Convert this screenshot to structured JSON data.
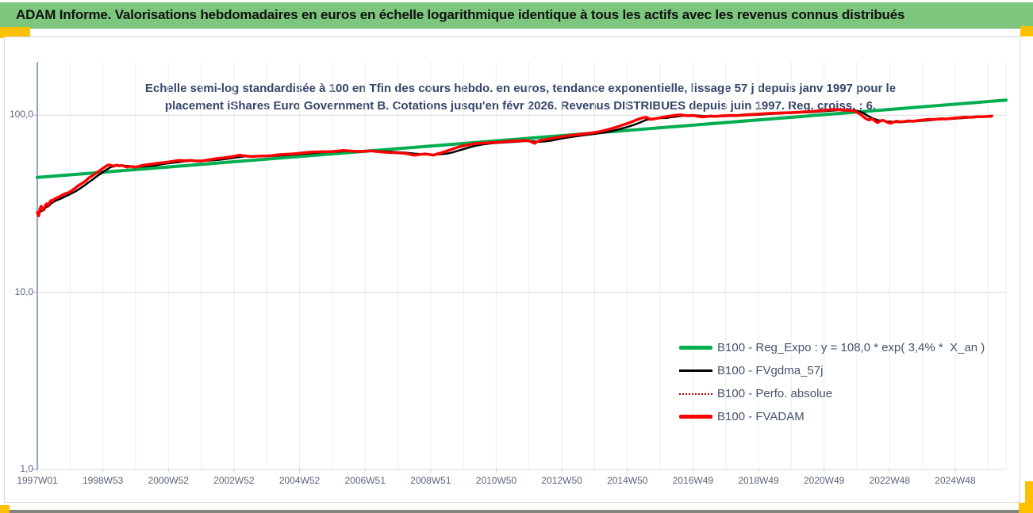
{
  "header": {
    "title": "ADAM Informe. Valorisations hebdomadaires en euros en échelle logarithmique identique à tous les actifs avec les revenus connus distribués"
  },
  "chart": {
    "subtitle_line1": "Echelle semi-log standardisée à 100 en Tfin des cours hebdo. en euros, tendance exponentielle, lissage 57 j depuis janv 1997 pour le",
    "subtitle_line2": "placement iShares Euro Government B. Cotations jusqu'en févr 2026. Revenus DISTRIBUES depuis juin 1997. Reg. croiss. : 6,"
  },
  "colors": {
    "title_bar_green": "#7CC67D",
    "accent_yellow": "#FFC000",
    "trend_green": "#00AE50",
    "series_red": "#FF0000",
    "series_black": "#000000",
    "dotted_red": "#C00000",
    "grid_light": "#EDEDED",
    "grid_decade": "#D9D9D9",
    "axis_line": "#96A5BE",
    "axis_label": "#5A6478",
    "legend_text": "#44546A",
    "subtitle_navy": "#35466B",
    "bottom_bar_gray": "#84867E"
  },
  "chart_data": {
    "type": "line",
    "title": "",
    "x_axis": {
      "labels": [
        "1997W01",
        "1998W53",
        "2000W52",
        "2002W52",
        "2004W52",
        "2006W51",
        "2008W51",
        "2010W50",
        "2012W50",
        "2014W50",
        "2016W49",
        "2018W49",
        "2020W49",
        "2022W48",
        "2024W48"
      ],
      "label_years": [
        1997,
        1999,
        2001,
        2003,
        2005,
        2007,
        2009,
        2011,
        2013,
        2015,
        2017,
        2019,
        2021,
        2023,
        2025
      ],
      "range_years": [
        1997,
        2026.55
      ],
      "grid": "yearly"
    },
    "y_axis": {
      "scale": "log",
      "tick_labels": [
        "100,0",
        "10,0",
        "1,0"
      ],
      "tick_values": [
        100,
        10,
        1
      ],
      "range": [
        1,
        200
      ],
      "grid": "decades"
    },
    "legend": [
      {
        "label": "B100 - Reg_Expo : y = 108,0 * exp( 3,4% *  X_an )",
        "color": "#00AE50",
        "style": "solid-thick"
      },
      {
        "label": "B100 - FVgdma_57j",
        "color": "#000000",
        "style": "solid"
      },
      {
        "label": "B100 - Perfo. absolue",
        "color": "#C00000",
        "style": "dotted"
      },
      {
        "label": "B100 - FVADAM",
        "color": "#FF0000",
        "style": "solid-thick"
      }
    ],
    "series": [
      {
        "name": "B100 - Reg_Expo",
        "kind": "trend",
        "formula": "y = 108,0 * exp( 3,4% * X_an )",
        "points": [
          [
            1997.0,
            44.5
          ],
          [
            2026.55,
            121.5
          ]
        ]
      },
      {
        "name": "B100 - FVgdma_57j",
        "kind": "moving-average",
        "derived_from": "B100 - FVADAM",
        "window_days": 57
      },
      {
        "name": "B100 - Perfo. absolue",
        "kind": "dotted-overlay",
        "overlaps": "B100 - FVADAM"
      },
      {
        "name": "B100 - FVADAM",
        "kind": "weekly-values",
        "points": [
          [
            1997.0,
            28.2
          ],
          [
            1997.04,
            27.0
          ],
          [
            1997.08,
            29.6
          ],
          [
            1997.12,
            30.6
          ],
          [
            1997.16,
            29.2
          ],
          [
            1997.21,
            29.8
          ],
          [
            1997.25,
            31.0
          ],
          [
            1997.29,
            31.6
          ],
          [
            1997.33,
            30.9
          ],
          [
            1997.38,
            32.2
          ],
          [
            1997.42,
            33.0
          ],
          [
            1997.46,
            32.6
          ],
          [
            1997.5,
            33.4
          ],
          [
            1997.58,
            34.0
          ],
          [
            1997.67,
            34.6
          ],
          [
            1997.75,
            35.3
          ],
          [
            1997.83,
            35.9
          ],
          [
            1997.92,
            36.3
          ],
          [
            1998.0,
            36.9
          ],
          [
            1998.08,
            37.8
          ],
          [
            1998.17,
            38.9
          ],
          [
            1998.25,
            40.0
          ],
          [
            1998.33,
            40.8
          ],
          [
            1998.42,
            41.8
          ],
          [
            1998.5,
            43.0
          ],
          [
            1998.58,
            44.3
          ],
          [
            1998.67,
            45.4
          ],
          [
            1998.75,
            46.4
          ],
          [
            1998.83,
            47.6
          ],
          [
            1998.92,
            48.8
          ],
          [
            1999.0,
            50.1
          ],
          [
            1999.08,
            51.3
          ],
          [
            1999.17,
            52.4
          ],
          [
            1999.25,
            52.0
          ],
          [
            1999.33,
            51.5
          ],
          [
            1999.42,
            52.2
          ],
          [
            1999.5,
            51.7
          ],
          [
            1999.58,
            52.1
          ],
          [
            1999.67,
            51.3
          ],
          [
            1999.75,
            50.9
          ],
          [
            1999.83,
            51.4
          ],
          [
            1999.92,
            51.1
          ],
          [
            2000.0,
            50.8
          ],
          [
            2000.17,
            51.9
          ],
          [
            2000.33,
            52.4
          ],
          [
            2000.5,
            53.0
          ],
          [
            2000.67,
            53.5
          ],
          [
            2000.83,
            53.9
          ],
          [
            2001.0,
            54.3
          ],
          [
            2001.17,
            55.0
          ],
          [
            2001.33,
            55.6
          ],
          [
            2001.5,
            55.3
          ],
          [
            2001.67,
            55.6
          ],
          [
            2001.83,
            55.1
          ],
          [
            2002.0,
            55.0
          ],
          [
            2002.17,
            55.7
          ],
          [
            2002.33,
            56.3
          ],
          [
            2002.5,
            56.9
          ],
          [
            2002.67,
            57.4
          ],
          [
            2002.83,
            58.0
          ],
          [
            2003.0,
            58.6
          ],
          [
            2003.17,
            59.4
          ],
          [
            2003.33,
            58.9
          ],
          [
            2003.5,
            58.4
          ],
          [
            2003.67,
            58.6
          ],
          [
            2003.83,
            58.8
          ],
          [
            2004.0,
            58.9
          ],
          [
            2004.17,
            59.2
          ],
          [
            2004.33,
            59.7
          ],
          [
            2004.5,
            60.0
          ],
          [
            2004.67,
            60.2
          ],
          [
            2004.83,
            60.5
          ],
          [
            2005.0,
            60.9
          ],
          [
            2005.17,
            61.4
          ],
          [
            2005.33,
            61.8
          ],
          [
            2005.5,
            62.0
          ],
          [
            2005.67,
            62.1
          ],
          [
            2005.83,
            62.1
          ],
          [
            2006.0,
            62.3
          ],
          [
            2006.17,
            62.7
          ],
          [
            2006.33,
            63.2
          ],
          [
            2006.5,
            62.8
          ],
          [
            2006.67,
            62.5
          ],
          [
            2006.83,
            62.3
          ],
          [
            2007.0,
            62.6
          ],
          [
            2007.17,
            62.9
          ],
          [
            2007.33,
            62.4
          ],
          [
            2007.5,
            62.0
          ],
          [
            2007.67,
            61.7
          ],
          [
            2007.83,
            61.4
          ],
          [
            2008.0,
            61.2
          ],
          [
            2008.17,
            61.0
          ],
          [
            2008.33,
            60.3
          ],
          [
            2008.5,
            59.4
          ],
          [
            2008.67,
            59.9
          ],
          [
            2008.83,
            60.4
          ],
          [
            2009.0,
            59.8
          ],
          [
            2009.08,
            59.4
          ],
          [
            2009.17,
            60.2
          ],
          [
            2009.33,
            61.3
          ],
          [
            2009.5,
            62.8
          ],
          [
            2009.67,
            64.4
          ],
          [
            2009.83,
            65.9
          ],
          [
            2010.0,
            67.2
          ],
          [
            2010.17,
            68.1
          ],
          [
            2010.33,
            68.9
          ],
          [
            2010.5,
            69.4
          ],
          [
            2010.67,
            69.7
          ],
          [
            2010.83,
            69.9
          ],
          [
            2011.0,
            70.2
          ],
          [
            2011.17,
            70.6
          ],
          [
            2011.33,
            71.0
          ],
          [
            2011.5,
            71.3
          ],
          [
            2011.67,
            71.6
          ],
          [
            2011.83,
            71.9
          ],
          [
            2012.0,
            71.6
          ],
          [
            2012.08,
            70.6
          ],
          [
            2012.17,
            69.3
          ],
          [
            2012.25,
            70.8
          ],
          [
            2012.33,
            71.9
          ],
          [
            2012.5,
            72.9
          ],
          [
            2012.67,
            73.8
          ],
          [
            2012.83,
            74.7
          ],
          [
            2013.0,
            75.6
          ],
          [
            2013.17,
            76.4
          ],
          [
            2013.33,
            77.1
          ],
          [
            2013.5,
            77.7
          ],
          [
            2013.67,
            78.3
          ],
          [
            2013.83,
            78.9
          ],
          [
            2014.0,
            79.8
          ],
          [
            2014.17,
            80.9
          ],
          [
            2014.33,
            82.2
          ],
          [
            2014.5,
            83.8
          ],
          [
            2014.67,
            85.6
          ],
          [
            2014.83,
            87.6
          ],
          [
            2015.0,
            89.8
          ],
          [
            2015.17,
            92.2
          ],
          [
            2015.33,
            94.8
          ],
          [
            2015.46,
            96.6
          ],
          [
            2015.58,
            97.3
          ],
          [
            2015.71,
            94.6
          ],
          [
            2015.83,
            95.4
          ],
          [
            2015.96,
            96.4
          ],
          [
            2016.08,
            97.4
          ],
          [
            2016.21,
            98.3
          ],
          [
            2016.33,
            99.1
          ],
          [
            2016.5,
            99.9
          ],
          [
            2016.63,
            100.4
          ],
          [
            2016.75,
            99.6
          ],
          [
            2016.88,
            99.2
          ],
          [
            2017.0,
            99.7
          ],
          [
            2017.17,
            98.4
          ],
          [
            2017.29,
            97.7
          ],
          [
            2017.42,
            98.3
          ],
          [
            2017.54,
            98.8
          ],
          [
            2017.67,
            98.5
          ],
          [
            2017.83,
            98.9
          ],
          [
            2018.0,
            99.3
          ],
          [
            2018.17,
            99.7
          ],
          [
            2018.33,
            99.5
          ],
          [
            2018.5,
            100.1
          ],
          [
            2018.67,
            100.6
          ],
          [
            2018.83,
            101.0
          ],
          [
            2019.0,
            101.4
          ],
          [
            2019.17,
            101.9
          ],
          [
            2019.33,
            102.3
          ],
          [
            2019.5,
            102.6
          ],
          [
            2019.67,
            102.9
          ],
          [
            2019.83,
            103.1
          ],
          [
            2020.0,
            103.4
          ],
          [
            2020.17,
            103.8
          ],
          [
            2020.33,
            104.2
          ],
          [
            2020.5,
            104.6
          ],
          [
            2020.67,
            105.1
          ],
          [
            2020.83,
            105.7
          ],
          [
            2021.0,
            106.4
          ],
          [
            2021.17,
            107.1
          ],
          [
            2021.33,
            107.6
          ],
          [
            2021.46,
            107.2
          ],
          [
            2021.58,
            106.7
          ],
          [
            2021.71,
            106.3
          ],
          [
            2021.83,
            105.9
          ],
          [
            2021.96,
            105.0
          ],
          [
            2022.04,
            103.0
          ],
          [
            2022.13,
            100.4
          ],
          [
            2022.21,
            97.6
          ],
          [
            2022.29,
            95.2
          ],
          [
            2022.38,
            93.9
          ],
          [
            2022.46,
            95.7
          ],
          [
            2022.54,
            93.0
          ],
          [
            2022.63,
            90.8
          ],
          [
            2022.71,
            92.6
          ],
          [
            2022.79,
            93.6
          ],
          [
            2022.88,
            92.2
          ],
          [
            2022.96,
            90.6
          ],
          [
            2023.04,
            90.0
          ],
          [
            2023.13,
            91.6
          ],
          [
            2023.21,
            92.4
          ],
          [
            2023.33,
            91.6
          ],
          [
            2023.46,
            92.2
          ],
          [
            2023.58,
            92.8
          ],
          [
            2023.71,
            92.3
          ],
          [
            2023.83,
            93.0
          ],
          [
            2023.96,
            93.6
          ],
          [
            2024.08,
            94.2
          ],
          [
            2024.21,
            94.7
          ],
          [
            2024.33,
            94.4
          ],
          [
            2024.46,
            94.9
          ],
          [
            2024.58,
            95.4
          ],
          [
            2024.71,
            95.1
          ],
          [
            2024.83,
            95.7
          ],
          [
            2024.96,
            96.2
          ],
          [
            2025.08,
            96.7
          ],
          [
            2025.21,
            97.1
          ],
          [
            2025.33,
            97.5
          ],
          [
            2025.46,
            97.2
          ],
          [
            2025.58,
            97.7
          ],
          [
            2025.71,
            98.1
          ],
          [
            2025.83,
            97.9
          ],
          [
            2026.0,
            98.4
          ],
          [
            2026.12,
            98.8
          ]
        ]
      }
    ]
  }
}
